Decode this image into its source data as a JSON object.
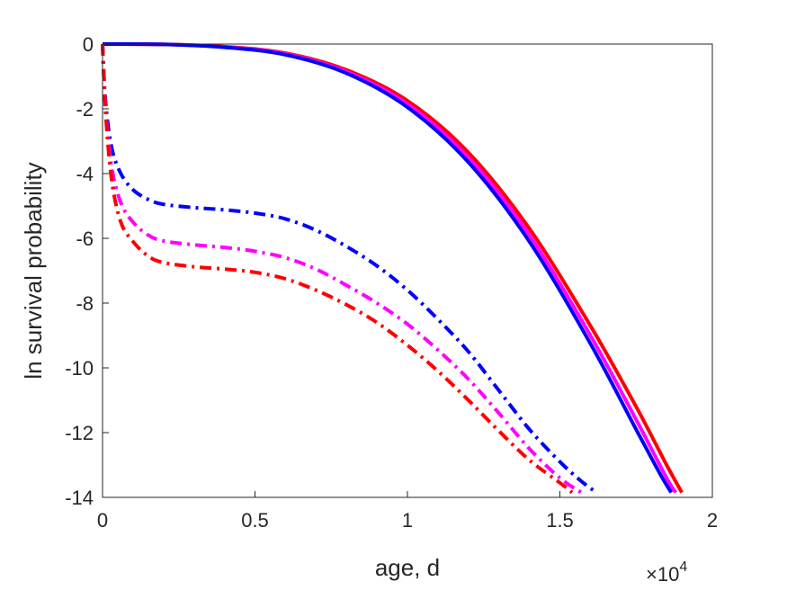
{
  "chart_data": {
    "type": "line",
    "xlabel": "age, d",
    "ylabel": "ln survival probability",
    "x_multiplier": {
      "times": "×",
      "base": "10",
      "exponent": "4"
    },
    "xlim": [
      0,
      20000
    ],
    "ylim": [
      -14,
      0
    ],
    "x_ticks": [
      0,
      5000,
      10000,
      15000,
      20000
    ],
    "x_tick_labels": [
      "0",
      "0.5",
      "1",
      "1.5",
      "2"
    ],
    "y_ticks": [
      0,
      -2,
      -4,
      -6,
      -8,
      -10,
      -12,
      -14
    ],
    "y_tick_labels": [
      "0",
      "-2",
      "-4",
      "-6",
      "-8",
      "-10",
      "-12",
      "-14"
    ],
    "grid": false,
    "series": [
      {
        "color": "#ff0000",
        "style": "solid",
        "points": [
          [
            0,
            0
          ],
          [
            2000,
            -0.01
          ],
          [
            4000,
            -0.08
          ],
          [
            6000,
            -0.28
          ],
          [
            8000,
            -0.8
          ],
          [
            10000,
            -1.75
          ],
          [
            12000,
            -3.35
          ],
          [
            14000,
            -5.7
          ],
          [
            16000,
            -8.7
          ],
          [
            17500,
            -11.2
          ],
          [
            18500,
            -13.0
          ],
          [
            19000,
            -13.85
          ]
        ]
      },
      {
        "color": "#ff00ff",
        "style": "solid",
        "points": [
          [
            0,
            0
          ],
          [
            2000,
            -0.01
          ],
          [
            4000,
            -0.09
          ],
          [
            6000,
            -0.3
          ],
          [
            8000,
            -0.85
          ],
          [
            10000,
            -1.85
          ],
          [
            12000,
            -3.5
          ],
          [
            14000,
            -5.9
          ],
          [
            16000,
            -9.0
          ],
          [
            17500,
            -11.6
          ],
          [
            18500,
            -13.4
          ],
          [
            18800,
            -13.85
          ]
        ]
      },
      {
        "color": "#0000ff",
        "style": "solid",
        "points": [
          [
            0,
            0
          ],
          [
            2000,
            -0.01
          ],
          [
            4000,
            -0.1
          ],
          [
            6000,
            -0.33
          ],
          [
            8000,
            -0.9
          ],
          [
            10000,
            -1.95
          ],
          [
            12000,
            -3.65
          ],
          [
            14000,
            -6.1
          ],
          [
            16000,
            -9.25
          ],
          [
            17500,
            -11.9
          ],
          [
            18300,
            -13.3
          ],
          [
            18650,
            -13.85
          ]
        ]
      },
      {
        "color": "#0000ff",
        "style": "dashdot",
        "points": [
          [
            0,
            0
          ],
          [
            100,
            -1.8
          ],
          [
            300,
            -3.2
          ],
          [
            600,
            -4.0
          ],
          [
            1000,
            -4.5
          ],
          [
            1500,
            -4.8
          ],
          [
            2000,
            -4.95
          ],
          [
            3000,
            -5.05
          ],
          [
            4000,
            -5.12
          ],
          [
            5000,
            -5.22
          ],
          [
            6000,
            -5.4
          ],
          [
            7000,
            -5.75
          ],
          [
            8000,
            -6.25
          ],
          [
            9000,
            -6.85
          ],
          [
            10000,
            -7.6
          ],
          [
            11000,
            -8.5
          ],
          [
            12000,
            -9.5
          ],
          [
            13000,
            -10.7
          ],
          [
            14000,
            -11.9
          ],
          [
            15000,
            -12.9
          ],
          [
            15700,
            -13.5
          ],
          [
            16200,
            -13.85
          ]
        ]
      },
      {
        "color": "#ff00ff",
        "style": "dashdot",
        "points": [
          [
            0,
            0
          ],
          [
            100,
            -2.0
          ],
          [
            300,
            -3.8
          ],
          [
            600,
            -4.9
          ],
          [
            1000,
            -5.5
          ],
          [
            1500,
            -5.9
          ],
          [
            2000,
            -6.08
          ],
          [
            3000,
            -6.2
          ],
          [
            4000,
            -6.28
          ],
          [
            5000,
            -6.4
          ],
          [
            6000,
            -6.6
          ],
          [
            7000,
            -6.95
          ],
          [
            8000,
            -7.45
          ],
          [
            9000,
            -8.0
          ],
          [
            10000,
            -8.65
          ],
          [
            11000,
            -9.45
          ],
          [
            12000,
            -10.35
          ],
          [
            13000,
            -11.4
          ],
          [
            14000,
            -12.5
          ],
          [
            15000,
            -13.4
          ],
          [
            15700,
            -13.85
          ]
        ]
      },
      {
        "color": "#ff0000",
        "style": "dashdot",
        "points": [
          [
            0,
            0
          ],
          [
            100,
            -2.1
          ],
          [
            300,
            -4.2
          ],
          [
            600,
            -5.5
          ],
          [
            1000,
            -6.1
          ],
          [
            1500,
            -6.55
          ],
          [
            2000,
            -6.75
          ],
          [
            3000,
            -6.88
          ],
          [
            4000,
            -6.95
          ],
          [
            5000,
            -7.05
          ],
          [
            6000,
            -7.25
          ],
          [
            7000,
            -7.6
          ],
          [
            8000,
            -8.05
          ],
          [
            9000,
            -8.6
          ],
          [
            10000,
            -9.3
          ],
          [
            11000,
            -10.1
          ],
          [
            12000,
            -11.0
          ],
          [
            13000,
            -11.95
          ],
          [
            14000,
            -12.85
          ],
          [
            15000,
            -13.55
          ],
          [
            15400,
            -13.85
          ]
        ]
      }
    ]
  }
}
